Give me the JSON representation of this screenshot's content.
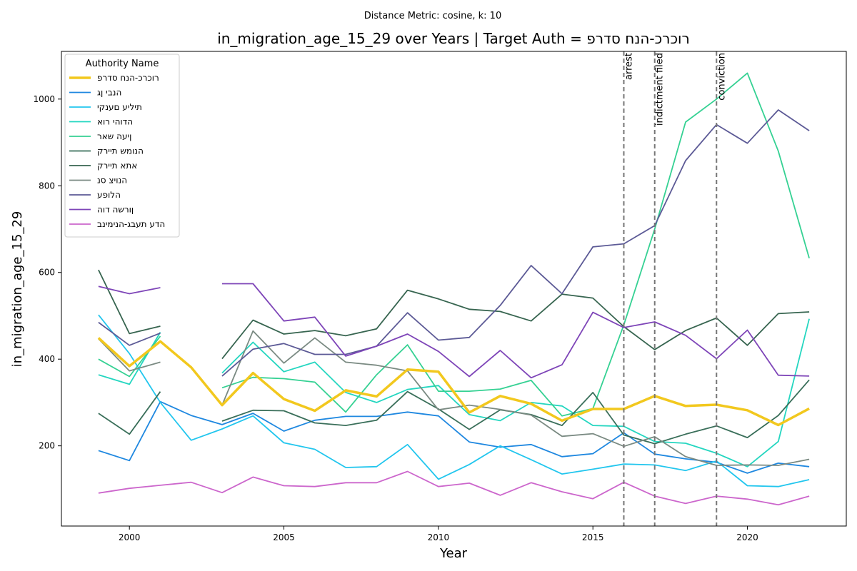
{
  "chart_data": {
    "type": "line",
    "suptitle": "Distance Metric: cosine, k: 10",
    "title": "in_migration_age_15_29 over Years | Target Auth = רוכרכ-הנח סדרפ",
    "xlabel": "Year",
    "ylabel": "in_migration_age_15_29",
    "xlim": [
      1997.8,
      2023.2
    ],
    "ylim": [
      15,
      1110
    ],
    "xticks": [
      2000,
      2005,
      2010,
      2015,
      2020
    ],
    "yticks": [
      200,
      400,
      600,
      800,
      1000
    ],
    "grid": false,
    "legend": {
      "title": "Authority Name",
      "placement": "upper-left"
    },
    "x": [
      1999,
      2000,
      2001,
      2002,
      2003,
      2004,
      2005,
      2006,
      2007,
      2008,
      2009,
      2010,
      2011,
      2012,
      2013,
      2014,
      2015,
      2016,
      2017,
      2018,
      2019,
      2020,
      2021,
      2022
    ],
    "events": [
      {
        "x": 2016,
        "label": "arrest"
      },
      {
        "x": 2017,
        "label": "indictment filed"
      },
      {
        "x": 2019,
        "label": "conviction"
      }
    ],
    "series": [
      {
        "name": "רוכרכ-הנח סדרפ",
        "color": "#f2c81e",
        "width": 3.5,
        "highlight": true,
        "values": [
          449,
          384,
          441,
          381,
          294,
          368,
          308,
          281,
          328,
          314,
          376,
          371,
          277,
          315,
          297,
          258,
          285,
          285,
          315,
          292,
          295,
          282,
          248,
          286
        ]
      },
      {
        "name": "הנבי ןג",
        "color": "#1f88e0",
        "width": 1.8,
        "values": [
          189,
          166,
          302,
          270,
          249,
          275,
          234,
          259,
          268,
          268,
          278,
          269,
          209,
          197,
          203,
          175,
          182,
          230,
          181,
          170,
          162,
          137,
          160,
          152
        ]
      },
      {
        "name": "תיליע םענקי",
        "color": "#22c6ee",
        "width": 1.8,
        "values": [
          502,
          413,
          300,
          213,
          239,
          269,
          207,
          192,
          150,
          152,
          203,
          123,
          157,
          200,
          168,
          135,
          146,
          158,
          156,
          143,
          165,
          108,
          106,
          122
        ]
      },
      {
        "name": "הדוהי רוא",
        "color": "#24d6c0",
        "width": 1.8,
        "values": [
          364,
          342,
          462,
          null,
          368,
          439,
          371,
          393,
          323,
          300,
          330,
          339,
          272,
          258,
          300,
          292,
          247,
          245,
          210,
          206,
          183,
          152,
          210,
          493
        ]
      },
      {
        "name": "ןיעה שאר",
        "color": "#35d193",
        "width": 1.8,
        "values": [
          400,
          360,
          453,
          null,
          334,
          358,
          355,
          347,
          278,
          364,
          433,
          326,
          326,
          331,
          351,
          269,
          286,
          479,
          700,
          947,
          1000,
          1060,
          880,
          633
        ]
      },
      {
        "name": "הנומש תיירק",
        "color": "#3a6f5a",
        "width": 1.8,
        "values": [
          275,
          227,
          325,
          null,
          257,
          282,
          281,
          253,
          247,
          259,
          325,
          285,
          238,
          283,
          272,
          247,
          323,
          225,
          205,
          227,
          246,
          219,
          270,
          352
        ]
      },
      {
        "name": "אתא תיירק",
        "color": "#376550",
        "width": 1.8,
        "values": [
          606,
          459,
          476,
          null,
          401,
          490,
          458,
          466,
          454,
          470,
          559,
          539,
          515,
          510,
          488,
          550,
          541,
          475,
          422,
          466,
          495,
          432,
          505,
          509
        ]
      },
      {
        "name": "הנויצ סנ",
        "color": "#7a8a82",
        "width": 1.8,
        "values": [
          447,
          373,
          393,
          null,
          294,
          465,
          391,
          449,
          393,
          386,
          373,
          283,
          294,
          284,
          271,
          222,
          228,
          199,
          221,
          175,
          155,
          156,
          155,
          169
        ]
      },
      {
        "name": "הלופע",
        "color": "#5c5a96",
        "width": 1.8,
        "values": [
          485,
          432,
          460,
          null,
          361,
          423,
          436,
          411,
          411,
          430,
          507,
          444,
          450,
          524,
          616,
          551,
          659,
          666,
          708,
          858,
          941,
          898,
          975,
          927
        ]
      },
      {
        "name": "ןורשה דוה",
        "color": "#7e45b8",
        "width": 1.8,
        "values": [
          568,
          551,
          565,
          null,
          574,
          574,
          488,
          497,
          407,
          430,
          458,
          418,
          360,
          420,
          357,
          387,
          508,
          473,
          486,
          455,
          401,
          467,
          363,
          361
        ]
      },
      {
        "name": "הדע תעבג-הנימינב",
        "color": "#cc66cc",
        "width": 1.8,
        "values": [
          91,
          102,
          109,
          116,
          92,
          128,
          108,
          106,
          115,
          115,
          141,
          106,
          114,
          86,
          115,
          94,
          78,
          116,
          84,
          67,
          84,
          77,
          64,
          84
        ]
      }
    ]
  }
}
